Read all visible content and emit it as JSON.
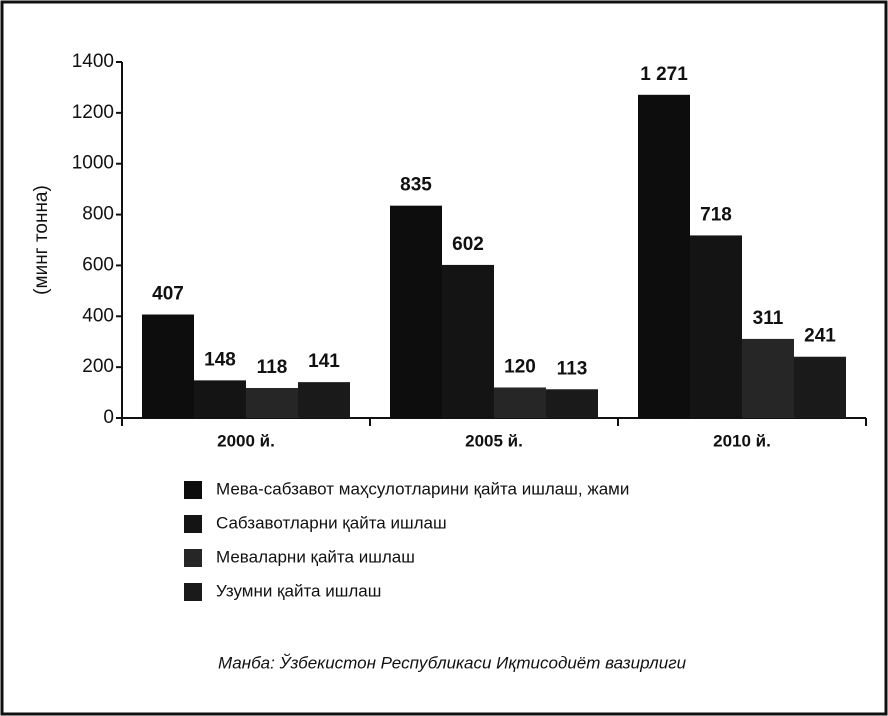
{
  "chart_data": {
    "type": "bar",
    "y_label": "(минг тонна)",
    "categories": [
      "2000 й.",
      "2005 й.",
      "2010 й."
    ],
    "series": [
      {
        "name": "Мева-сабзавот маҳсулотларини қайта ишлаш, жами",
        "color": "#0d0d0d",
        "values": [
          407,
          835,
          1271
        ],
        "value_labels": [
          "407",
          "835",
          "1 271"
        ]
      },
      {
        "name": "Сабзавотларни қайта ишлаш",
        "color": "#141414",
        "values": [
          148,
          602,
          718
        ]
      },
      {
        "name": "Меваларни қайта ишлаш",
        "color": "#262626",
        "values": [
          118,
          120,
          311
        ]
      },
      {
        "name": "Узумни қайта ишлаш",
        "color": "#1a1a1a",
        "values": [
          141,
          113,
          241
        ]
      }
    ],
    "ylim": [
      0,
      1400
    ],
    "yticks": [
      0,
      200,
      400,
      600,
      800,
      1000,
      1200,
      1400
    ],
    "source": "Манба: Ўзбекистон Республикаси Иқтисодиёт вазирлиги"
  }
}
